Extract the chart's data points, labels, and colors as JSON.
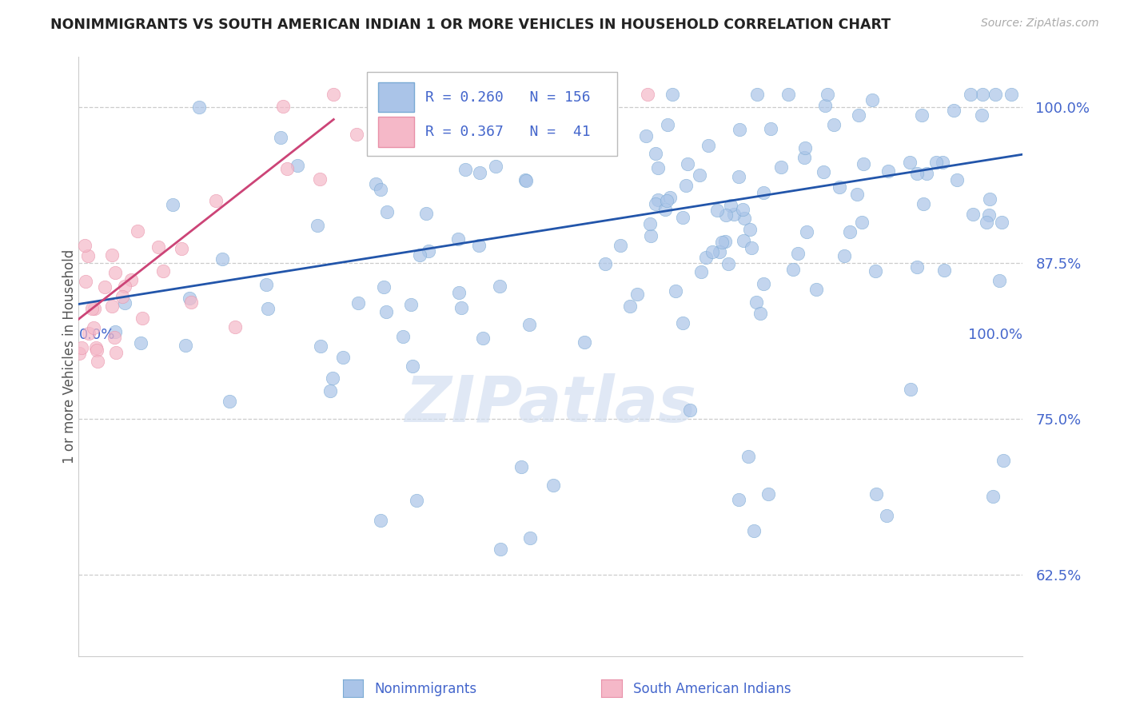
{
  "title": "NONIMMIGRANTS VS SOUTH AMERICAN INDIAN 1 OR MORE VEHICLES IN HOUSEHOLD CORRELATION CHART",
  "source_text": "Source: ZipAtlas.com",
  "ylabel": "1 or more Vehicles in Household",
  "watermark": "ZIPatlas",
  "background_color": "#ffffff",
  "title_color": "#222222",
  "source_color": "#aaaaaa",
  "ylabel_color": "#555555",
  "axis_tick_color": "#4466cc",
  "grid_color": "#cccccc",
  "blue_dot_color": "#aac4e8",
  "blue_dot_edge": "#7aaad4",
  "pink_dot_color": "#f5b8c8",
  "pink_dot_edge": "#e890a8",
  "blue_line_color": "#2255aa",
  "pink_line_color": "#cc4477",
  "legend_box_color": "#dddddd",
  "xlim": [
    0.0,
    1.0
  ],
  "ylim": [
    0.56,
    1.04
  ],
  "yticks": [
    0.625,
    0.75,
    0.875,
    1.0
  ],
  "ytick_labels": [
    "62.5%",
    "75.0%",
    "87.5%",
    "100.0%"
  ],
  "blue_trend_x0": 0.0,
  "blue_trend_y0": 0.842,
  "blue_trend_x1": 1.0,
  "blue_trend_y1": 0.962,
  "pink_trend_x0": 0.0,
  "pink_trend_y0": 0.83,
  "pink_trend_x1": 0.27,
  "pink_trend_y1": 0.99,
  "seed_blue": 77,
  "seed_pink": 33,
  "n_blue": 156,
  "n_pink": 41
}
